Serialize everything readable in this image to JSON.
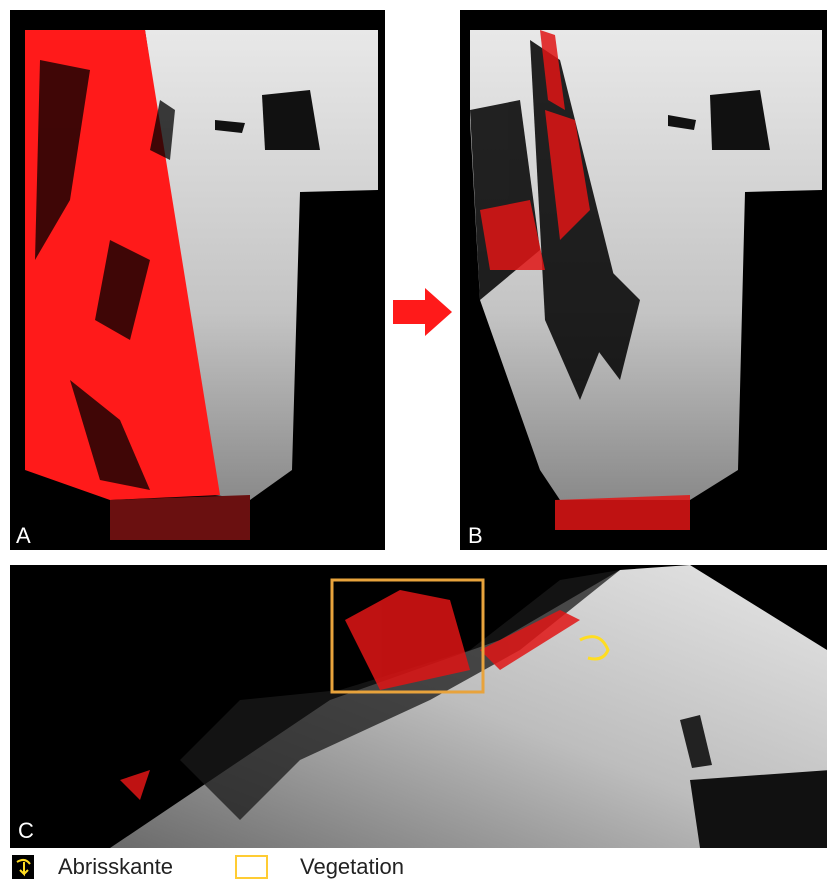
{
  "panels": [
    {
      "label": "A"
    },
    {
      "label": "B"
    },
    {
      "label": "C"
    }
  ],
  "legend": [
    {
      "label": "Abrisskante"
    },
    {
      "label": "Vegetation"
    }
  ]
}
